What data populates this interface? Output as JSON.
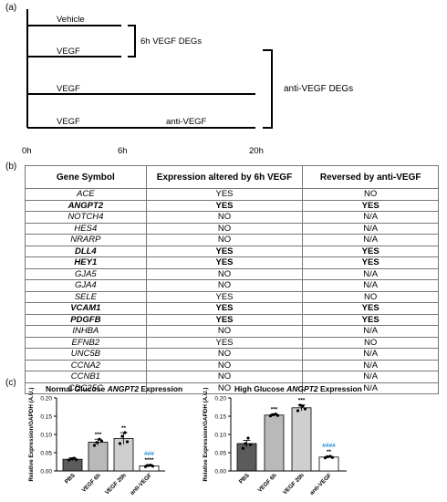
{
  "panel_a": {
    "label": "(a)",
    "arms": [
      {
        "left": "Vehicle",
        "right": ""
      },
      {
        "left": "VEGF",
        "right": ""
      },
      {
        "left": "VEGF",
        "right": ""
      },
      {
        "left": "VEGF",
        "right": "anti-VEGF"
      }
    ],
    "bracket_6h": "6h VEGF DEGs",
    "bracket_anti": "anti-VEGF DEGs",
    "timepoints": [
      "0h",
      "6h",
      "20h"
    ]
  },
  "panel_b": {
    "label": "(b)",
    "headers": [
      "Gene Symbol",
      "Expression altered by 6h VEGF",
      "Reversed by anti-VEGF"
    ],
    "rows": [
      {
        "gene": "ACE",
        "altered": "YES",
        "reversed": "NO",
        "bold": false
      },
      {
        "gene": "ANGPT2",
        "altered": "YES",
        "reversed": "YES",
        "bold": true
      },
      {
        "gene": "NOTCH4",
        "altered": "NO",
        "reversed": "N/A",
        "bold": false
      },
      {
        "gene": "HES4",
        "altered": "NO",
        "reversed": "N/A",
        "bold": false
      },
      {
        "gene": "NRARP",
        "altered": "NO",
        "reversed": "N/A",
        "bold": false
      },
      {
        "gene": "DLL4",
        "altered": "YES",
        "reversed": "YES",
        "bold": true
      },
      {
        "gene": "HEY1",
        "altered": "YES",
        "reversed": "YES",
        "bold": true
      },
      {
        "gene": "GJA5",
        "altered": "NO",
        "reversed": "N/A",
        "bold": false
      },
      {
        "gene": "GJA4",
        "altered": "NO",
        "reversed": "N/A",
        "bold": false
      },
      {
        "gene": "SELE",
        "altered": "YES",
        "reversed": "NO",
        "bold": false
      },
      {
        "gene": "VCAM1",
        "altered": "YES",
        "reversed": "YES",
        "bold": true
      },
      {
        "gene": "PDGFB",
        "altered": "YES",
        "reversed": "YES",
        "bold": true
      },
      {
        "gene": "INHBA",
        "altered": "NO",
        "reversed": "N/A",
        "bold": false
      },
      {
        "gene": "EFNB2",
        "altered": "YES",
        "reversed": "NO",
        "bold": false
      },
      {
        "gene": "UNC5B",
        "altered": "NO",
        "reversed": "N/A",
        "bold": false
      },
      {
        "gene": "CCNA2",
        "altered": "NO",
        "reversed": "N/A",
        "bold": false
      },
      {
        "gene": "CCNB1",
        "altered": "NO",
        "reversed": "N/A",
        "bold": false
      },
      {
        "gene": "CDC25C",
        "altered": "NO",
        "reversed": "N/A",
        "bold": false
      }
    ]
  },
  "panel_c": {
    "label": "(c)"
  },
  "chart_data": [
    {
      "type": "bar",
      "title_prefix": "Normal Glucose ",
      "title_gene": "ANGPT2",
      "title_suffix": " Expression",
      "ylabel": "Relative Expression/GAPDH (A.U.)",
      "categories": [
        "PBS",
        "VEGF 6h",
        "VEGF 20h",
        "anti-VEGF"
      ],
      "values": [
        0.032,
        0.079,
        0.089,
        0.014
      ],
      "errors": [
        0.004,
        0.008,
        0.016,
        0.003
      ],
      "points": [
        [
          0.03,
          0.033,
          0.035,
          0.031
        ],
        [
          0.07,
          0.078,
          0.087,
          0.082
        ],
        [
          0.075,
          0.095,
          0.105,
          0.08
        ],
        [
          0.012,
          0.015,
          0.016,
          0.013
        ]
      ],
      "stars": [
        "",
        "***",
        "**",
        "****"
      ],
      "hashes": [
        "",
        "",
        "",
        "###"
      ],
      "yticks": [
        "0.00",
        "0.05",
        "0.10",
        "0.15",
        "0.20"
      ],
      "ylim": [
        0,
        0.2
      ],
      "colors": [
        "#5b5b5b",
        "#b9b9b9",
        "#cfcfcf",
        "#ffffff"
      ],
      "hash_color": "#1f8fd6"
    },
    {
      "type": "bar",
      "title_prefix": "High Glucose ",
      "title_gene": "ANGPT2",
      "title_suffix": " Expression",
      "ylabel": "Relative Expression/GAPDH (A.U.)",
      "categories": [
        "PBS",
        "VEGF 6h",
        "VEGF 20h",
        "anti-VEGF"
      ],
      "values": [
        0.075,
        0.153,
        0.173,
        0.038
      ],
      "errors": [
        0.009,
        0.003,
        0.008,
        0.002
      ],
      "points": [
        [
          0.062,
          0.075,
          0.09,
          0.072
        ],
        [
          0.151,
          0.154,
          0.156,
          0.152
        ],
        [
          0.165,
          0.18,
          0.178,
          0.17
        ],
        [
          0.036,
          0.039,
          0.04,
          0.037
        ]
      ],
      "stars": [
        "",
        "***",
        "***",
        "**"
      ],
      "hashes": [
        "",
        "",
        "",
        "####"
      ],
      "yticks": [
        "0.00",
        "0.05",
        "0.10",
        "0.15",
        "0.20"
      ],
      "ylim": [
        0,
        0.2
      ],
      "colors": [
        "#5b5b5b",
        "#b9b9b9",
        "#cfcfcf",
        "#ffffff"
      ],
      "hash_color": "#1f8fd6"
    }
  ]
}
